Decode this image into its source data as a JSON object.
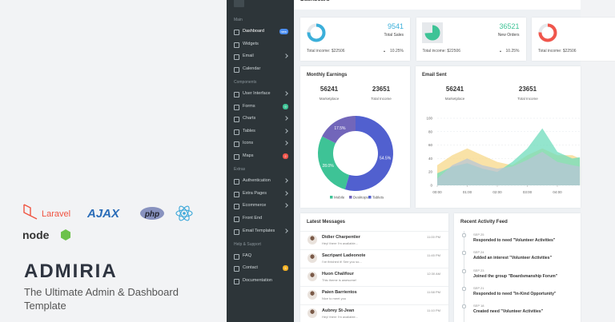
{
  "brand": {
    "technologies": [
      "Laravel",
      "AJAX",
      "php",
      "node"
    ],
    "title": "ADMIRIA",
    "subtitle": "The Ultimate Admin & Dashboard Template"
  },
  "topbar": {
    "title": "Dashboard"
  },
  "sidebar": {
    "sections": [
      {
        "header": "Main",
        "items": [
          {
            "label": "Dashboard",
            "badge": "new",
            "badge_color": "#4b8ef1",
            "active": true
          },
          {
            "label": "Widgets"
          },
          {
            "label": "Email",
            "arrow": true
          },
          {
            "label": "Calendar"
          }
        ]
      },
      {
        "header": "Components",
        "items": [
          {
            "label": "User Interface",
            "arrow": true
          },
          {
            "label": "Forms",
            "badge": "9",
            "badge_color": "#3ec396"
          },
          {
            "label": "Charts",
            "arrow": true
          },
          {
            "label": "Tables",
            "arrow": true
          },
          {
            "label": "Icons",
            "arrow": true
          },
          {
            "label": "Maps",
            "badge": "2",
            "badge_color": "#f0564c"
          }
        ]
      },
      {
        "header": "Extras",
        "items": [
          {
            "label": "Authentication",
            "arrow": true
          },
          {
            "label": "Extra Pages",
            "arrow": true
          },
          {
            "label": "Ecommerce",
            "arrow": true
          },
          {
            "label": "Front End"
          },
          {
            "label": "Email Templates",
            "arrow": true
          }
        ]
      },
      {
        "header": "Help & Support",
        "items": [
          {
            "label": "FAQ"
          },
          {
            "label": "Contact",
            "badge": "5",
            "badge_color": "#f5b225"
          },
          {
            "label": "Documentation"
          }
        ]
      }
    ]
  },
  "stats": [
    {
      "value": 9541,
      "label": "Total Sales",
      "income": "Total income: $22506",
      "change": "10.25%",
      "color": "#3bafda"
    },
    {
      "value": 36521,
      "label": "New Orders",
      "income": "Total income: $22506",
      "change": "10.25%",
      "color": "#3ec396"
    },
    {
      "income": "Total income: $22506",
      "change": "10.25%",
      "color": "#f0564c"
    }
  ],
  "earnings": {
    "title": "Monthly Earnings",
    "stats": [
      {
        "value": 56241,
        "label": "Marketplace"
      },
      {
        "value": 23651,
        "label": "Total Income"
      }
    ],
    "segments": [
      {
        "name": "Mobile",
        "value": 28.0,
        "label": "28.0%",
        "color": "#3ec396"
      },
      {
        "name": "Desktops",
        "value": 17.5,
        "label": "17.5%",
        "color": "#7266ba"
      },
      {
        "name": "Tablets",
        "value": 54.5,
        "label": "54.5%",
        "color": "#5160cf"
      }
    ]
  },
  "email": {
    "title": "Email Sent",
    "stats": [
      {
        "value": 56241,
        "label": "Marketplace"
      },
      {
        "value": 23651,
        "label": "Total Income"
      }
    ],
    "chart": {
      "type": "area",
      "x": [
        0,
        0.5,
        1,
        1.5,
        2,
        2.5,
        3,
        3.5,
        4,
        4.5,
        4.75
      ],
      "xlim": [
        0,
        4.75
      ],
      "xticks": [
        {
          "value": 0,
          "label": "00:00"
        },
        {
          "value": 1,
          "label": "01:00"
        },
        {
          "value": 2,
          "label": "02:00"
        },
        {
          "value": 3,
          "label": "03:00"
        },
        {
          "value": 4,
          "label": "04:00"
        }
      ],
      "ylim": [
        0,
        100
      ],
      "yticks": [
        0,
        20,
        40,
        60,
        80,
        100
      ],
      "grid": true,
      "series": [
        {
          "color": "#f7d88a",
          "values": [
            30,
            45,
            55,
            45,
            35,
            30,
            45,
            55,
            45,
            45,
            40
          ]
        },
        {
          "color": "#6fdcbc",
          "values": [
            18,
            28,
            33,
            25,
            20,
            35,
            55,
            85,
            50,
            40,
            42
          ]
        },
        {
          "color": "#b7c6d6",
          "values": [
            10,
            30,
            40,
            30,
            25,
            28,
            38,
            50,
            35,
            30,
            28
          ]
        }
      ]
    }
  },
  "messages": {
    "title": "Latest Messages",
    "items": [
      {
        "name": "Didier Charpentier",
        "text": "Hey! there I'm available...",
        "time": "11:00 PM"
      },
      {
        "name": "Sacripant Ladeonote",
        "text": "I've finished it! See you so...",
        "time": "11:45 PM"
      },
      {
        "name": "Huon Chalifour",
        "text": "This theme is awesome!",
        "time": "12:30 AM"
      },
      {
        "name": "Paien Barrientos",
        "text": "Nice to meet you",
        "time": "11:58 PM"
      },
      {
        "name": "Aubrey St-Jean",
        "text": "Hey! there I'm available...",
        "time": "11:10 PM"
      }
    ]
  },
  "activity": {
    "title": "Recent Activity Feed",
    "items": [
      {
        "date": "SEP 25",
        "text": "Responded to need \"Volunteer Activities\""
      },
      {
        "date": "SEP 24",
        "text": "Added an interest \"Volunteer Activities\""
      },
      {
        "date": "SEP 23",
        "text": "Joined the group \"Boardsmanship Forum\""
      },
      {
        "date": "SEP 21",
        "text": "Responded to need \"In-Kind Opportunity\""
      },
      {
        "date": "SEP 18",
        "text": "Created need \"Volunteer Activities\""
      }
    ]
  }
}
